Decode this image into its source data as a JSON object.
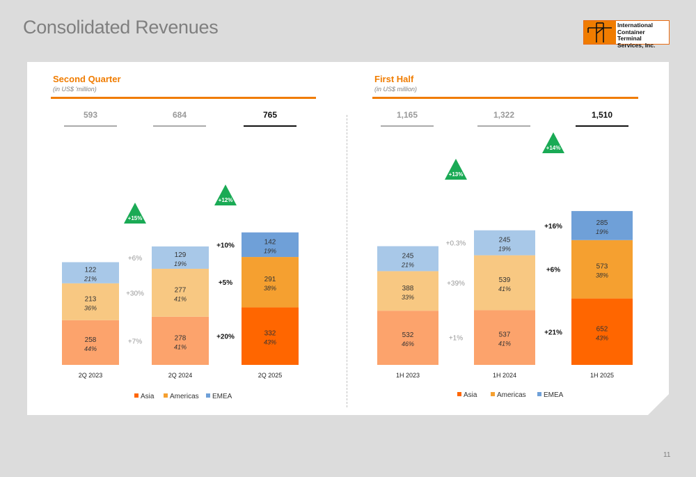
{
  "title": "Consolidated Revenues",
  "logo_text": "International\nContainer Terminal\nServices, Inc.",
  "page_number": "11",
  "colors": {
    "asia": "#ff6600",
    "americas": "#f5a030",
    "emea": "#6fa0d8",
    "asia_light": "#fca36c",
    "americas_light": "#f8c882",
    "emea_light": "#a8c8e8",
    "accent": "#f07c00",
    "growth": "#1aaa55"
  },
  "chart_data": [
    {
      "type": "bar",
      "title": "Second Quarter",
      "subtitle": "(in US$ 'million)",
      "categories": [
        "2Q 2023",
        "2Q 2024",
        "2Q 2025"
      ],
      "totals": [
        "593",
        "684",
        "765"
      ],
      "series": [
        {
          "name": "Asia",
          "values": [
            258,
            278,
            332
          ],
          "shares": [
            "44%",
            "41%",
            "43%"
          ]
        },
        {
          "name": "Americas",
          "values": [
            213,
            277,
            291
          ],
          "shares": [
            "36%",
            "41%",
            "38%"
          ]
        },
        {
          "name": "EMEA",
          "values": [
            122,
            129,
            142
          ],
          "shares": [
            "21%",
            "19%",
            "19%"
          ]
        }
      ],
      "growth_total": [
        "+15%",
        "+12%"
      ],
      "growth_by_series": [
        {
          "asia": "+7%",
          "americas": "+30%",
          "emea": "+6%"
        },
        {
          "asia": "+20%",
          "americas": "+5%",
          "emea": "+10%"
        }
      ],
      "legend": [
        "Asia",
        "Americas",
        "EMEA"
      ]
    },
    {
      "type": "bar",
      "title": "First Half",
      "subtitle": "(in US$ million)",
      "categories": [
        "1H 2023",
        "1H 2024",
        "1H 2025"
      ],
      "totals": [
        "1,165",
        "1,322",
        "1,510"
      ],
      "series": [
        {
          "name": "Asia",
          "values": [
            532,
            537,
            652
          ],
          "shares": [
            "46%",
            "41%",
            "43%"
          ]
        },
        {
          "name": "Americas",
          "values": [
            388,
            539,
            573
          ],
          "shares": [
            "33%",
            "41%",
            "38%"
          ]
        },
        {
          "name": "EMEA",
          "values": [
            245,
            245,
            285
          ],
          "shares": [
            "21%",
            "19%",
            "19%"
          ]
        }
      ],
      "growth_total": [
        "+13%",
        "+14%"
      ],
      "growth_by_series": [
        {
          "asia": "+1%",
          "americas": "+39%",
          "emea": "+0.3%"
        },
        {
          "asia": "+21%",
          "americas": "+6%",
          "emea": "+16%"
        }
      ],
      "legend": [
        "Asia",
        "Americas",
        "EMEA"
      ]
    }
  ]
}
